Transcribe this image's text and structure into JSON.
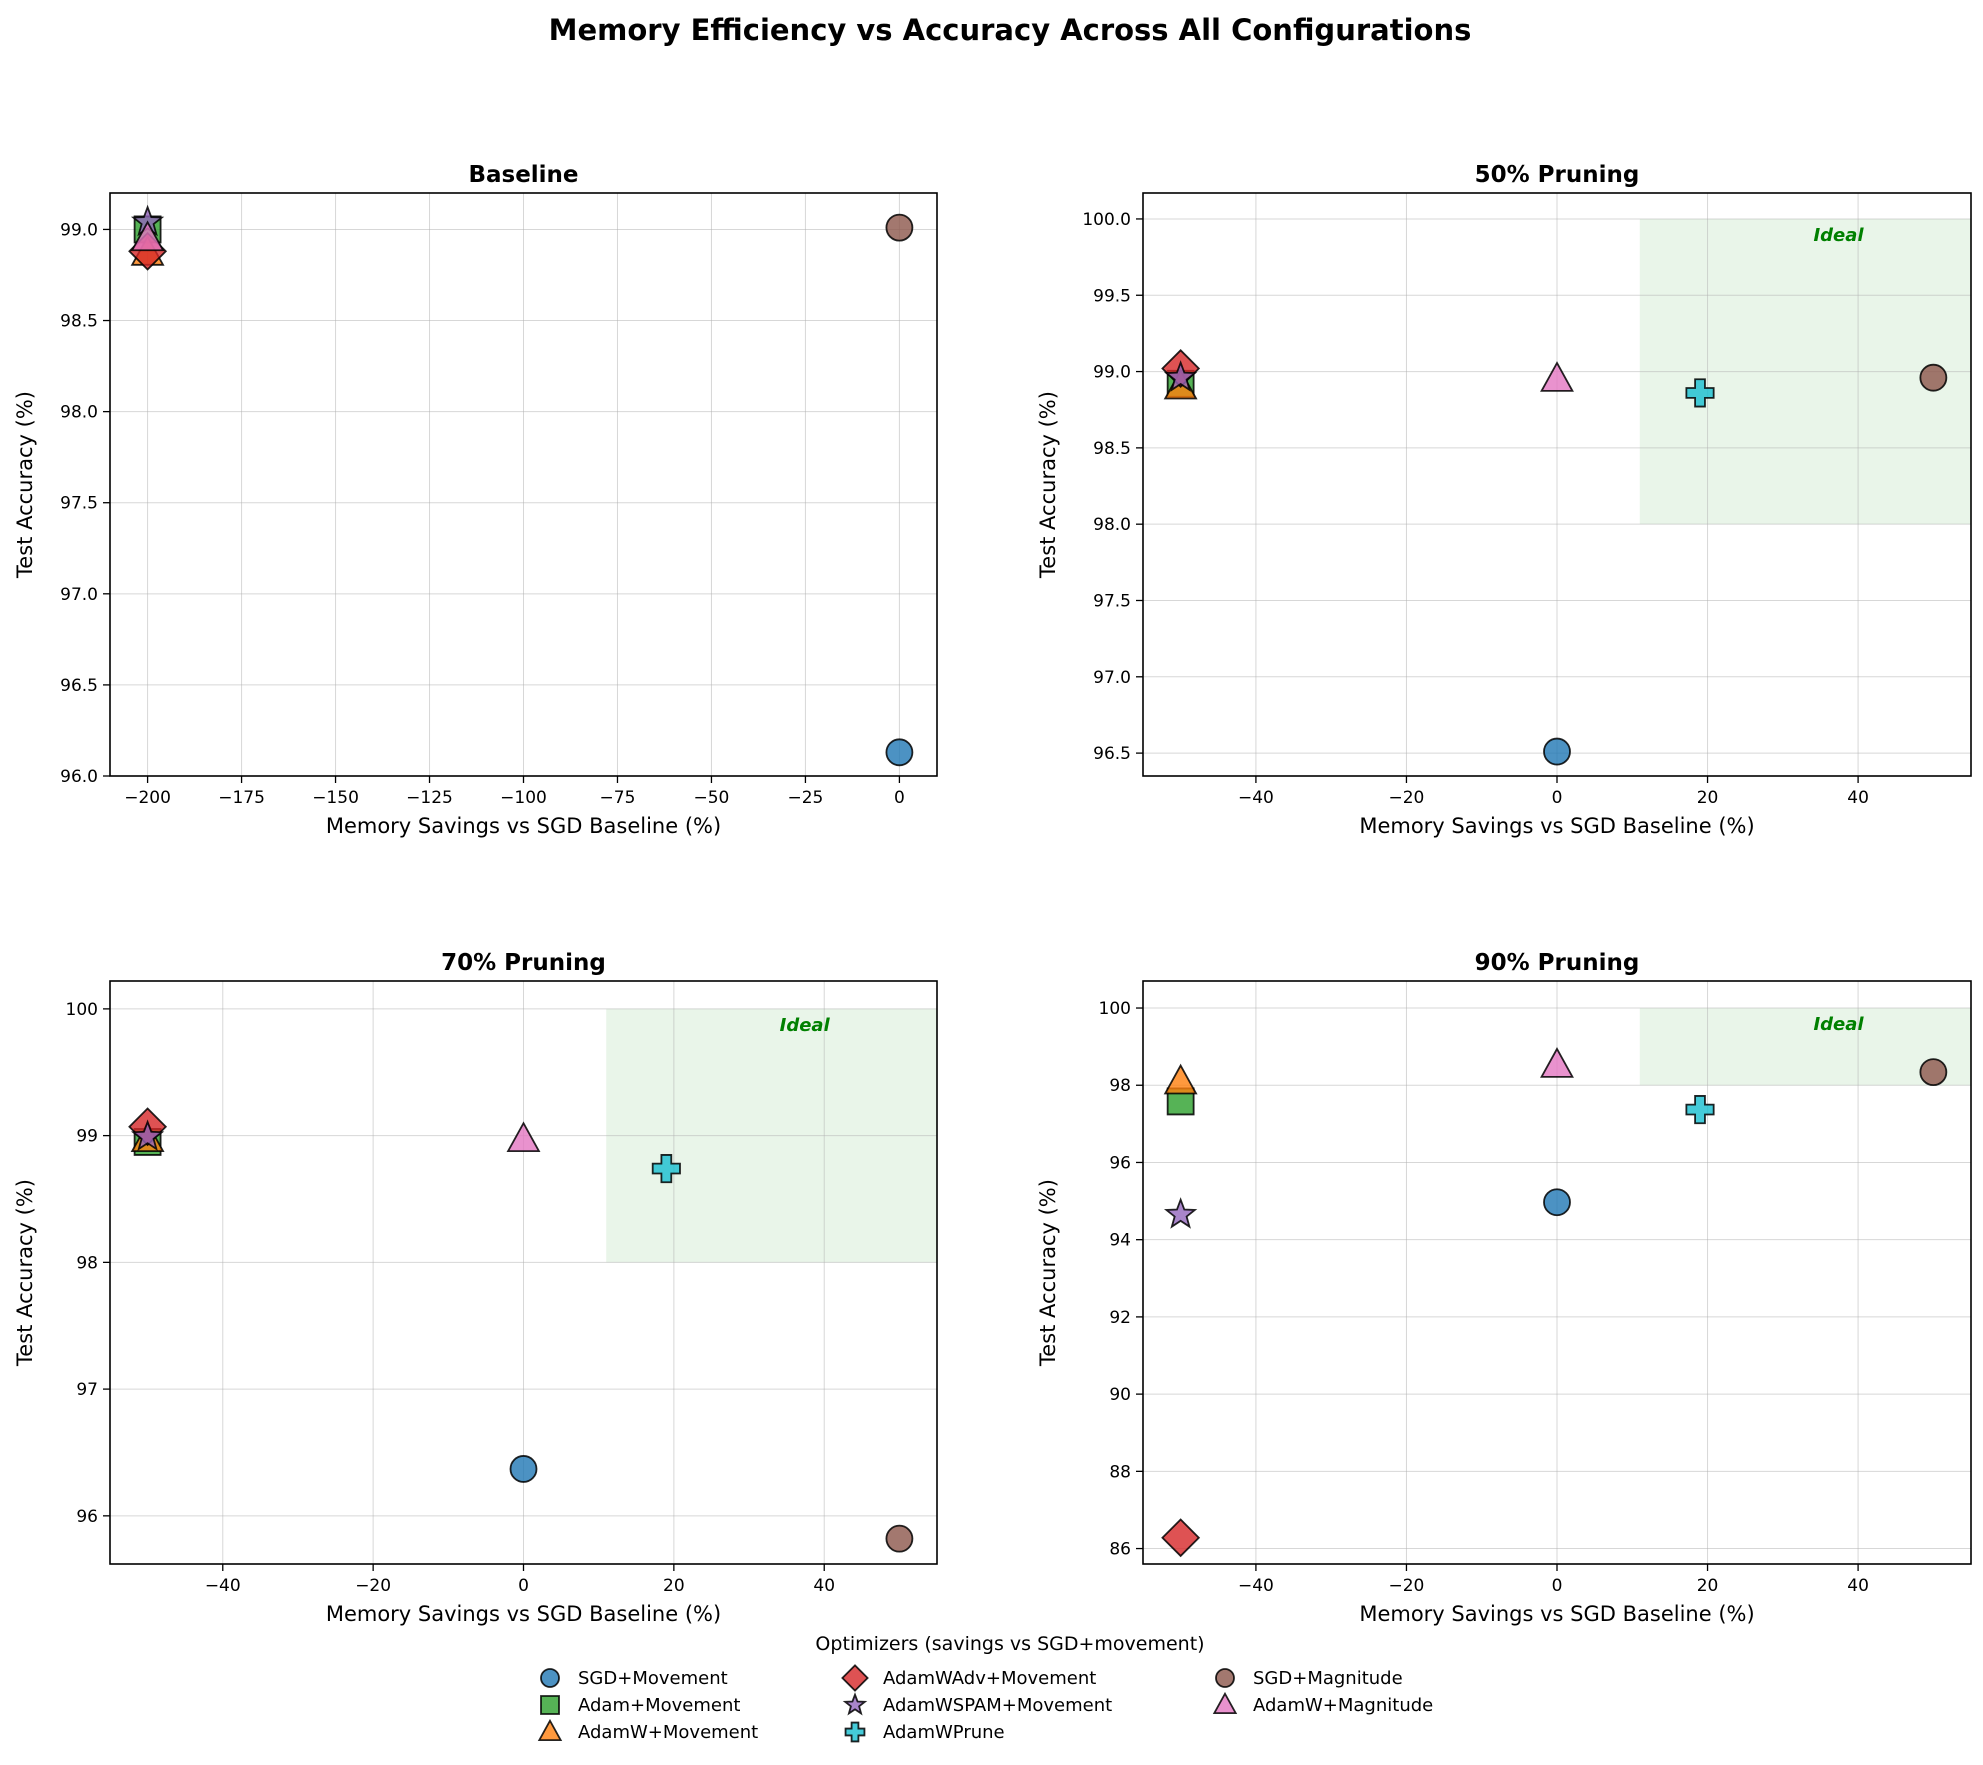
{
  "figure": {
    "suptitle": "Memory Efficiency vs Accuracy Across All Configurations",
    "legend_title": "Optimizers (savings vs SGD+movement)"
  },
  "optimizers": [
    {
      "name": "SGD+Movement",
      "color": "#1f77b4",
      "marker": "circle"
    },
    {
      "name": "Adam+Movement",
      "color": "#2ca02c",
      "marker": "square"
    },
    {
      "name": "AdamW+Movement",
      "color": "#ff7f0e",
      "marker": "triangle"
    },
    {
      "name": "AdamWAdv+Movement",
      "color": "#d62728",
      "marker": "diamond"
    },
    {
      "name": "AdamWSPAM+Movement",
      "color": "#9467bd",
      "marker": "star"
    },
    {
      "name": "AdamWPrune",
      "color": "#17becf",
      "marker": "plus"
    },
    {
      "name": "SGD+Magnitude",
      "color": "#8c564b",
      "marker": "circle"
    },
    {
      "name": "AdamW+Magnitude",
      "color": "#e377c2",
      "marker": "triangle"
    }
  ],
  "chart_data": [
    {
      "type": "scatter",
      "title": "Baseline",
      "xlabel": "Memory Savings vs SGD Baseline (%)",
      "ylabel": "Test Accuracy (%)",
      "xlim": [
        -210,
        10
      ],
      "ylim": [
        96.0,
        99.2
      ],
      "xticks": [
        -200,
        -175,
        -150,
        -125,
        -100,
        -75,
        -50,
        -25,
        0
      ],
      "yticks": [
        96.0,
        96.5,
        97.0,
        97.5,
        98.0,
        98.5,
        99.0
      ],
      "ytick_labels": [
        "96.0",
        "96.5",
        "97.0",
        "97.5",
        "98.0",
        "98.5",
        "99.0"
      ],
      "grid": true,
      "ideal_region": null,
      "points": [
        {
          "series": "SGD+Movement",
          "x": 0,
          "y": 96.13
        },
        {
          "series": "Adam+Movement",
          "x": -200,
          "y": 99.0
        },
        {
          "series": "AdamW+Movement",
          "x": -200,
          "y": 98.87
        },
        {
          "series": "AdamWAdv+Movement",
          "x": -200,
          "y": 98.88
        },
        {
          "series": "AdamWSPAM+Movement",
          "x": -200,
          "y": 99.04
        },
        {
          "series": "SGD+Magnitude",
          "x": 0,
          "y": 99.01
        },
        {
          "series": "AdamW+Magnitude",
          "x": -200,
          "y": 98.95
        }
      ]
    },
    {
      "type": "scatter",
      "title": "50% Pruning",
      "xlabel": "Memory Savings vs SGD Baseline (%)",
      "ylabel": "Test Accuracy (%)",
      "xlim": [
        -55,
        55
      ],
      "ylim": [
        96.35,
        100.17
      ],
      "xticks": [
        -40,
        -20,
        0,
        20,
        40
      ],
      "yticks": [
        96.5,
        97.0,
        97.5,
        98.0,
        98.5,
        99.0,
        99.5,
        100.0
      ],
      "ytick_labels": [
        "96.5",
        "97.0",
        "97.5",
        "98.0",
        "98.5",
        "99.0",
        "99.5",
        "100.0"
      ],
      "grid": true,
      "ideal_region": {
        "x": [
          11,
          55
        ],
        "y": [
          98.0,
          100.0
        ],
        "label": "Ideal"
      },
      "points": [
        {
          "series": "SGD+Movement",
          "x": 0,
          "y": 96.51
        },
        {
          "series": "Adam+Movement",
          "x": -50,
          "y": 98.92
        },
        {
          "series": "AdamW+Movement",
          "x": -50,
          "y": 98.9
        },
        {
          "series": "AdamWAdv+Movement",
          "x": -50,
          "y": 99.02
        },
        {
          "series": "AdamWSPAM+Movement",
          "x": -50,
          "y": 98.96
        },
        {
          "series": "AdamWPrune",
          "x": 19,
          "y": 98.86
        },
        {
          "series": "SGD+Magnitude",
          "x": 50,
          "y": 98.96
        },
        {
          "series": "AdamW+Magnitude",
          "x": 0,
          "y": 98.95
        }
      ]
    },
    {
      "type": "scatter",
      "title": "70% Pruning",
      "xlabel": "Memory Savings vs SGD Baseline (%)",
      "ylabel": "Test Accuracy (%)",
      "xlim": [
        -55,
        55
      ],
      "ylim": [
        95.62,
        100.22
      ],
      "xticks": [
        -40,
        -20,
        0,
        20,
        40
      ],
      "yticks": [
        96,
        97,
        98,
        99,
        100
      ],
      "ytick_labels": [
        "96",
        "97",
        "98",
        "99",
        "100"
      ],
      "grid": true,
      "ideal_region": {
        "x": [
          11,
          55
        ],
        "y": [
          98.0,
          100.0
        ],
        "label": "Ideal"
      },
      "points": [
        {
          "series": "SGD+Movement",
          "x": 0,
          "y": 96.37
        },
        {
          "series": "Adam+Movement",
          "x": -50,
          "y": 98.95
        },
        {
          "series": "AdamW+Movement",
          "x": -50,
          "y": 98.97
        },
        {
          "series": "AdamWAdv+Movement",
          "x": -50,
          "y": 99.07
        },
        {
          "series": "AdamWSPAM+Movement",
          "x": -50,
          "y": 98.99
        },
        {
          "series": "AdamWPrune",
          "x": 19,
          "y": 98.74
        },
        {
          "series": "SGD+Magnitude",
          "x": 50,
          "y": 95.82
        },
        {
          "series": "AdamW+Magnitude",
          "x": 0,
          "y": 98.97
        }
      ]
    },
    {
      "type": "scatter",
      "title": "90% Pruning",
      "xlabel": "Memory Savings vs SGD Baseline (%)",
      "ylabel": "Test Accuracy (%)",
      "xlim": [
        -55,
        55
      ],
      "ylim": [
        85.6,
        100.7
      ],
      "xticks": [
        -40,
        -20,
        0,
        20,
        40
      ],
      "yticks": [
        86,
        88,
        90,
        92,
        94,
        96,
        98,
        100
      ],
      "ytick_labels": [
        "86",
        "88",
        "90",
        "92",
        "94",
        "96",
        "98",
        "100"
      ],
      "grid": true,
      "ideal_region": {
        "x": [
          11,
          55
        ],
        "y": [
          98.0,
          100.0
        ],
        "label": "Ideal"
      },
      "points": [
        {
          "series": "SGD+Movement",
          "x": 0,
          "y": 94.97
        },
        {
          "series": "Adam+Movement",
          "x": -50,
          "y": 97.58
        },
        {
          "series": "AdamW+Movement",
          "x": -50,
          "y": 98.09
        },
        {
          "series": "AdamWAdv+Movement",
          "x": -50,
          "y": 86.28
        },
        {
          "series": "AdamWSPAM+Movement",
          "x": -50,
          "y": 94.65
        },
        {
          "series": "AdamWPrune",
          "x": 19,
          "y": 97.37
        },
        {
          "series": "SGD+Magnitude",
          "x": 50,
          "y": 98.34
        },
        {
          "series": "AdamW+Magnitude",
          "x": 0,
          "y": 98.52
        }
      ]
    }
  ]
}
